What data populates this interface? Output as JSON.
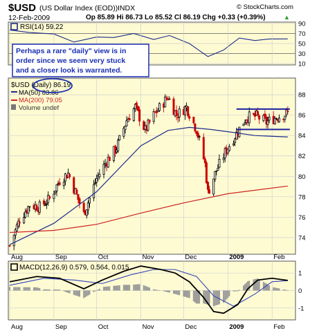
{
  "header": {
    "symbol": "$USD",
    "name": "(US Dollar Index (EOD))",
    "exchange": "INDX",
    "date": "12-Feb-2009",
    "quote": "Op 85.89  Hi 86.73  Lo 85.52  Cl 86.19  Chg +0.33 (+0.39%)",
    "quote_arrow": "▲",
    "copyright": "© StockCharts.com"
  },
  "annotation": {
    "lines": [
      "Perhaps a rare \"daily\" view is in",
      "order since we seem very stuck",
      "and a closer look is warranted."
    ],
    "highlight_word": "(Daily)"
  },
  "colors": {
    "panel_bg": "#fefbd2",
    "grid": "#cfcfcf",
    "candle_up": "#000000",
    "candle_down": "#cc0000",
    "ma50": "#1c2a8c",
    "ma200": "#cc2222",
    "rsi_line": "#1c2a8c",
    "macd_line": "#000000",
    "signal_line": "#3344bb",
    "histogram": "#9a9a9a",
    "annotation_text": "#1a2fb0",
    "resistance": "#1a1fa0"
  },
  "chart_data": [
    {
      "type": "line",
      "panel": "rsi",
      "title": "RSI(14) 59.22",
      "ylim": [
        10,
        90
      ],
      "yticks": [
        90,
        70,
        50,
        30,
        10
      ],
      "reference_lines": [
        70,
        30
      ],
      "series": [
        {
          "name": "RSI(14)",
          "x": [
            "2008-08-01",
            "2008-08-15",
            "2008-09-01",
            "2008-09-15",
            "2008-10-01",
            "2008-10-13",
            "2008-10-27",
            "2008-11-10",
            "2008-11-21",
            "2008-12-05",
            "2008-12-12",
            "2008-12-18",
            "2008-12-29",
            "2009-01-09",
            "2009-01-20",
            "2009-01-30",
            "2009-02-12"
          ],
          "y": [
            77,
            72,
            69,
            53,
            63,
            62,
            70,
            58,
            66,
            50,
            36,
            24,
            37,
            61,
            56,
            59,
            59.22
          ]
        }
      ]
    },
    {
      "type": "candlestick",
      "panel": "price",
      "title": "$USD (Daily) 86.19",
      "ylim": [
        72.5,
        89.5
      ],
      "yticks": [
        74,
        76,
        78,
        80,
        82,
        84,
        86,
        88
      ],
      "xticks": [
        "Aug",
        "Sep",
        "Oct",
        "Nov",
        "Dec",
        "2009",
        "Feb"
      ],
      "xtick_dates": [
        "2008-08-01",
        "2008-09-01",
        "2008-10-01",
        "2008-11-01",
        "2008-12-01",
        "2009-01-01",
        "2009-02-01"
      ],
      "legend": [
        "$USD (Daily) 86.19",
        "MA(50) 83.86",
        "MA(200) 79.05",
        "Volume undef"
      ],
      "close_path": {
        "x": [
          "2008-08-01",
          "2008-08-08",
          "2008-08-15",
          "2008-08-22",
          "2008-08-29",
          "2008-09-05",
          "2008-09-11",
          "2008-09-22",
          "2008-10-01",
          "2008-10-08",
          "2008-10-15",
          "2008-10-22",
          "2008-10-28",
          "2008-11-04",
          "2008-11-10",
          "2008-11-20",
          "2008-11-26",
          "2008-12-03",
          "2008-12-10",
          "2008-12-16",
          "2008-12-18",
          "2008-12-24",
          "2008-12-31",
          "2009-01-07",
          "2009-01-14",
          "2009-01-21",
          "2009-01-28",
          "2009-02-04",
          "2009-02-12"
        ],
        "y": [
          73.2,
          75.8,
          77.2,
          77.0,
          77.8,
          79.6,
          80.3,
          76.3,
          79.8,
          81.5,
          82.8,
          85.5,
          86.8,
          84.5,
          86.0,
          87.8,
          86.0,
          86.8,
          84.6,
          81.2,
          78.4,
          80.6,
          82.6,
          84.2,
          85.8,
          85.9,
          85.3,
          85.8,
          86.19
        ]
      },
      "series": [
        {
          "name": "MA(50)",
          "x": [
            "2008-08-01",
            "2008-09-01",
            "2008-10-01",
            "2008-11-01",
            "2008-11-20",
            "2008-12-05",
            "2008-12-20",
            "2009-01-05",
            "2009-01-20",
            "2009-02-12"
          ],
          "y": [
            73.3,
            75.4,
            78.5,
            83.0,
            84.5,
            84.8,
            84.6,
            84.3,
            84.0,
            83.86
          ]
        },
        {
          "name": "MA(200)",
          "x": [
            "2008-08-01",
            "2008-09-01",
            "2008-10-01",
            "2008-11-01",
            "2008-12-01",
            "2009-01-01",
            "2009-02-12"
          ],
          "y": [
            74.5,
            74.7,
            75.3,
            76.4,
            77.4,
            78.3,
            79.05
          ]
        }
      ],
      "trading_range": {
        "top": 86.6,
        "bottom": 84.6,
        "start": "2009-01-08",
        "end": "2009-02-12"
      }
    },
    {
      "type": "line",
      "panel": "macd",
      "title": "MACD(12,26,9) 0.579, 0.564, 0.015",
      "ylim": [
        -1.6,
        1.6
      ],
      "yticks": [
        1,
        0,
        -1
      ],
      "xticks": [
        "Aug",
        "Sep",
        "Oct",
        "Nov",
        "Dec",
        "2009",
        "Feb"
      ],
      "series": [
        {
          "name": "MACD",
          "x": [
            "2008-08-01",
            "2008-08-20",
            "2008-09-05",
            "2008-09-22",
            "2008-10-05",
            "2008-10-20",
            "2008-11-01",
            "2008-11-15",
            "2008-11-25",
            "2008-12-05",
            "2008-12-15",
            "2008-12-22",
            "2008-12-29",
            "2009-01-08",
            "2009-01-15",
            "2009-01-22",
            "2009-02-01",
            "2009-02-12"
          ],
          "y": [
            0.5,
            0.8,
            0.7,
            0.1,
            0.6,
            1.1,
            1.4,
            1.2,
            1.0,
            0.5,
            -0.4,
            -1.2,
            -1.3,
            -0.8,
            0.1,
            0.6,
            0.7,
            0.579
          ]
        },
        {
          "name": "Signal",
          "x": [
            "2008-08-01",
            "2008-08-25",
            "2008-09-15",
            "2008-10-05",
            "2008-10-25",
            "2008-11-10",
            "2008-11-25",
            "2008-12-10",
            "2008-12-22",
            "2009-01-05",
            "2009-01-20",
            "2009-02-01",
            "2009-02-12"
          ],
          "y": [
            0.3,
            0.7,
            0.6,
            0.4,
            0.9,
            1.2,
            1.2,
            0.8,
            -0.3,
            -0.9,
            -0.2,
            0.5,
            0.564
          ]
        }
      ]
    }
  ]
}
